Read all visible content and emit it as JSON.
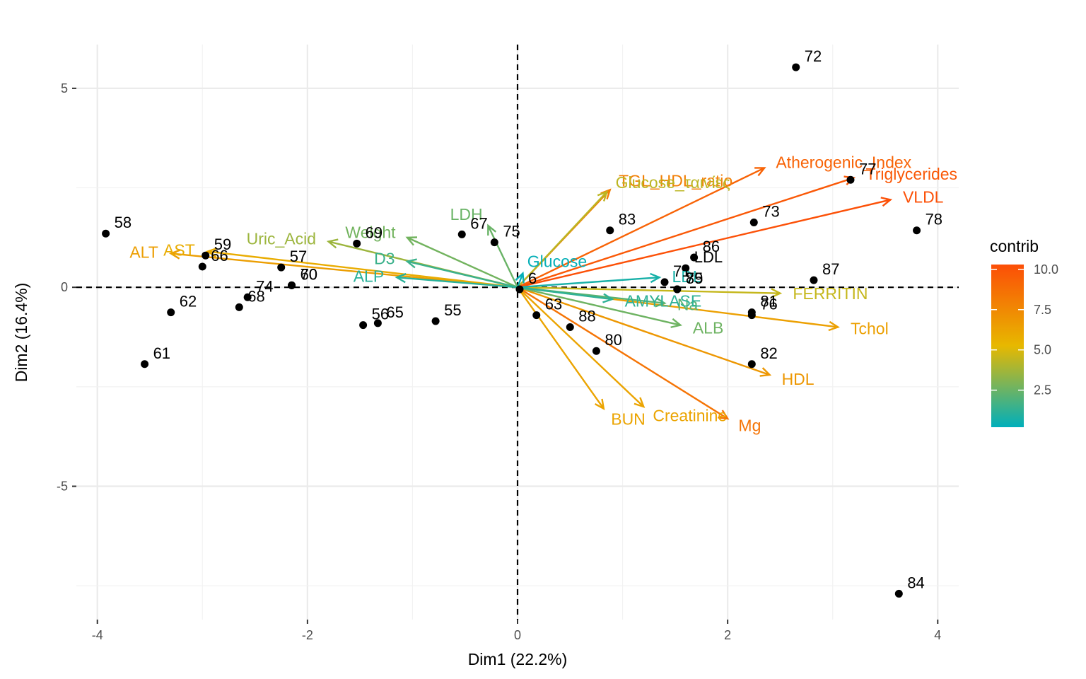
{
  "chart_data": {
    "type": "scatter",
    "subtype": "pca-biplot",
    "xlabel": "Dim1 (22.2%)",
    "ylabel": "Dim2 (16.4%)",
    "xlim": [
      -4.2,
      4.2
    ],
    "ylim": [
      -8.35,
      6.1
    ],
    "x_ticks": [
      -4,
      -2,
      0,
      2,
      4
    ],
    "x_tick_labels": [
      "-4",
      "-2",
      "0",
      "2",
      "4"
    ],
    "y_ticks": [
      -5,
      0,
      5
    ],
    "y_tick_labels": [
      "-5",
      "0",
      "5"
    ],
    "grid": true,
    "reference_lines": {
      "x": 0,
      "y": 0,
      "style": "dashed"
    },
    "legend": {
      "title": "contrib",
      "placement": "right",
      "min": 0.2,
      "max": 10.3,
      "tick_values": [
        2.5,
        5.0,
        7.5,
        10.0
      ],
      "tick_labels": [
        "2.5",
        "5.0",
        "7.5",
        "10.0"
      ],
      "colors": [
        "#00AFBB",
        "#E7B800",
        "#FC4E07"
      ]
    },
    "individuals": [
      {
        "label": "58",
        "x": -3.92,
        "y": 1.35
      },
      {
        "label": "59",
        "x": -2.97,
        "y": 0.8
      },
      {
        "label": "57",
        "x": -2.25,
        "y": 0.5
      },
      {
        "label": "66",
        "x": -3.0,
        "y": 0.52
      },
      {
        "label": "74",
        "x": -2.57,
        "y": -0.25
      },
      {
        "label": "70",
        "x": -2.15,
        "y": 0.05
      },
      {
        "label": "60",
        "x": -2.15,
        "y": 0.05
      },
      {
        "label": "68",
        "x": -2.65,
        "y": -0.5
      },
      {
        "label": "62",
        "x": -3.3,
        "y": -0.63
      },
      {
        "label": "61",
        "x": -3.55,
        "y": -1.93
      },
      {
        "label": "69",
        "x": -1.53,
        "y": 1.1
      },
      {
        "label": "67",
        "x": -0.53,
        "y": 1.33
      },
      {
        "label": "65",
        "x": -1.33,
        "y": -0.9
      },
      {
        "label": "56",
        "x": -1.47,
        "y": -0.95
      },
      {
        "label": "55",
        "x": -0.78,
        "y": -0.85
      },
      {
        "label": "75",
        "x": -0.22,
        "y": 1.13
      },
      {
        "label": "6",
        "x": 0.02,
        "y": -0.05
      },
      {
        "label": "63",
        "x": 0.18,
        "y": -0.7
      },
      {
        "label": "88",
        "x": 0.5,
        "y": -1.0
      },
      {
        "label": "80",
        "x": 0.75,
        "y": -1.6
      },
      {
        "label": "83",
        "x": 0.88,
        "y": 1.43
      },
      {
        "label": "71",
        "x": 1.4,
        "y": 0.13
      },
      {
        "label": "86",
        "x": 1.68,
        "y": 0.75
      },
      {
        "label": "LDL",
        "x": 1.6,
        "y": 0.48
      },
      {
        "label": "79",
        "x": 1.52,
        "y": -0.05
      },
      {
        "label": "85",
        "x": 1.52,
        "y": -0.05
      },
      {
        "label": "81",
        "x": 2.23,
        "y": -0.63
      },
      {
        "label": "76",
        "x": 2.23,
        "y": -0.7
      },
      {
        "label": "82",
        "x": 2.23,
        "y": -1.93
      },
      {
        "label": "73",
        "x": 2.25,
        "y": 1.63
      },
      {
        "label": "72",
        "x": 2.65,
        "y": 5.53
      },
      {
        "label": "77",
        "x": 3.17,
        "y": 2.7
      },
      {
        "label": "78",
        "x": 3.8,
        "y": 1.43
      },
      {
        "label": "87",
        "x": 2.82,
        "y": 0.18
      },
      {
        "label": "84",
        "x": 3.63,
        "y": -7.7
      }
    ],
    "variables": [
      {
        "name": "Atherogenic_Index",
        "x": 2.35,
        "y": 3.0,
        "contrib": 9.3
      },
      {
        "name": "Triglycerides",
        "x": 3.2,
        "y": 2.75,
        "contrib": 9.8
      },
      {
        "name": "VLDL",
        "x": 3.55,
        "y": 2.2,
        "contrib": 10.2
      },
      {
        "name": "TGL_HDL_ratio",
        "x": 0.88,
        "y": 2.45,
        "contrib": 8.0
      },
      {
        "name": "Glucose_ταινίες",
        "x": 0.85,
        "y": 2.4,
        "contrib": 4.3
      },
      {
        "name": "Tchol",
        "x": 3.05,
        "y": -1.0,
        "contrib": 6.4
      },
      {
        "name": "FERRITIN",
        "x": 2.5,
        "y": -0.15,
        "contrib": 4.5
      },
      {
        "name": "HDL",
        "x": 2.4,
        "y": -2.2,
        "contrib": 6.8
      },
      {
        "name": "Mg",
        "x": 2.0,
        "y": -3.3,
        "contrib": 8.5
      },
      {
        "name": "Creatinine",
        "x": 1.2,
        "y": -3.0,
        "contrib": 6.2
      },
      {
        "name": "BUN",
        "x": 0.82,
        "y": -3.05,
        "contrib": 6.2
      },
      {
        "name": "ALB",
        "x": 1.55,
        "y": -0.95,
        "contrib": 2.6
      },
      {
        "name": "Na",
        "x": 1.4,
        "y": -0.4,
        "contrib": 2.2
      },
      {
        "name": "AMYLASE",
        "x": 0.9,
        "y": -0.3,
        "contrib": 1.2
      },
      {
        "name": "LDL",
        "x": 1.35,
        "y": 0.25,
        "contrib": 0.7
      },
      {
        "name": "ALT",
        "x": -3.3,
        "y": 0.85,
        "contrib": 6.5
      },
      {
        "name": "AST",
        "x": -2.95,
        "y": 0.9,
        "contrib": 5.8
      },
      {
        "name": "Uric_Acid",
        "x": -1.8,
        "y": 1.15,
        "contrib": 3.6
      },
      {
        "name": "Weight",
        "x": -1.05,
        "y": 1.25,
        "contrib": 2.7
      },
      {
        "name": "LDH",
        "x": -0.28,
        "y": 1.55,
        "contrib": 2.5
      },
      {
        "name": "D3",
        "x": -1.05,
        "y": 0.65,
        "contrib": 1.5
      },
      {
        "name": "ALP",
        "x": -1.15,
        "y": 0.25,
        "contrib": 1.1
      },
      {
        "name": "Glucose",
        "x": 0.05,
        "y": 0.35,
        "contrib": 0.3
      }
    ]
  }
}
